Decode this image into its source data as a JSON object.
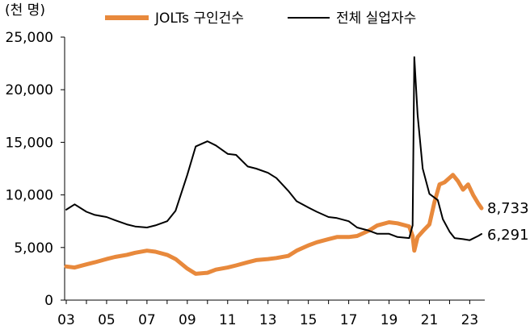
{
  "chart_data": {
    "type": "line",
    "unit_label": "(천 명)",
    "x_tick_labels": [
      "03",
      "05",
      "07",
      "09",
      "11",
      "13",
      "15",
      "17",
      "19",
      "21",
      "23"
    ],
    "x_tick_years": [
      2003,
      2005,
      2007,
      2009,
      2011,
      2013,
      2015,
      2017,
      2019,
      2021,
      2023
    ],
    "x_range": [
      "2003-01",
      "2023-08"
    ],
    "ylim": [
      0,
      25000
    ],
    "y_ticks": [
      0,
      5000,
      10000,
      15000,
      20000,
      25000
    ],
    "y_tick_labels": [
      "0",
      "5,000",
      "10,000",
      "15,000",
      "20,000",
      "25,000"
    ],
    "grid": false,
    "legend_position": "top",
    "series": [
      {
        "name": "JOLTs 구인건수",
        "color": "#E8893C",
        "points": [
          [
            "2003-01",
            3200
          ],
          [
            "2003-06",
            3100
          ],
          [
            "2004-01",
            3400
          ],
          [
            "2004-06",
            3600
          ],
          [
            "2005-01",
            3900
          ],
          [
            "2005-06",
            4100
          ],
          [
            "2006-01",
            4300
          ],
          [
            "2006-06",
            4500
          ],
          [
            "2007-01",
            4700
          ],
          [
            "2007-06",
            4600
          ],
          [
            "2008-01",
            4300
          ],
          [
            "2008-06",
            3900
          ],
          [
            "2009-01",
            3000
          ],
          [
            "2009-06",
            2500
          ],
          [
            "2010-01",
            2600
          ],
          [
            "2010-06",
            2900
          ],
          [
            "2011-01",
            3100
          ],
          [
            "2011-06",
            3300
          ],
          [
            "2012-01",
            3600
          ],
          [
            "2012-06",
            3800
          ],
          [
            "2013-01",
            3900
          ],
          [
            "2013-06",
            4000
          ],
          [
            "2014-01",
            4200
          ],
          [
            "2014-06",
            4700
          ],
          [
            "2015-01",
            5200
          ],
          [
            "2015-06",
            5500
          ],
          [
            "2016-01",
            5800
          ],
          [
            "2016-06",
            6000
          ],
          [
            "2017-01",
            6000
          ],
          [
            "2017-06",
            6100
          ],
          [
            "2018-01",
            6600
          ],
          [
            "2018-06",
            7100
          ],
          [
            "2019-01",
            7400
          ],
          [
            "2019-06",
            7300
          ],
          [
            "2020-01",
            7000
          ],
          [
            "2020-03",
            6100
          ],
          [
            "2020-04",
            4700
          ],
          [
            "2020-06",
            6000
          ],
          [
            "2020-10",
            6700
          ],
          [
            "2021-01",
            7200
          ],
          [
            "2021-04",
            9300
          ],
          [
            "2021-07",
            11000
          ],
          [
            "2021-10",
            11200
          ],
          [
            "2022-03",
            11900
          ],
          [
            "2022-06",
            11300
          ],
          [
            "2022-09",
            10500
          ],
          [
            "2022-12",
            11000
          ],
          [
            "2023-03",
            10000
          ],
          [
            "2023-06",
            9200
          ],
          [
            "2023-08",
            8733
          ]
        ]
      },
      {
        "name": "전체 실업자수",
        "color": "#000000",
        "points": [
          [
            "2003-01",
            8600
          ],
          [
            "2003-06",
            9100
          ],
          [
            "2004-01",
            8400
          ],
          [
            "2004-06",
            8100
          ],
          [
            "2005-01",
            7900
          ],
          [
            "2005-06",
            7600
          ],
          [
            "2006-01",
            7200
          ],
          [
            "2006-06",
            7000
          ],
          [
            "2007-01",
            6900
          ],
          [
            "2007-06",
            7100
          ],
          [
            "2008-01",
            7500
          ],
          [
            "2008-06",
            8500
          ],
          [
            "2009-01",
            11900
          ],
          [
            "2009-06",
            14600
          ],
          [
            "2010-01",
            15100
          ],
          [
            "2010-06",
            14700
          ],
          [
            "2011-01",
            13900
          ],
          [
            "2011-06",
            13800
          ],
          [
            "2012-01",
            12700
          ],
          [
            "2012-06",
            12500
          ],
          [
            "2013-01",
            12100
          ],
          [
            "2013-06",
            11600
          ],
          [
            "2014-01",
            10400
          ],
          [
            "2014-06",
            9400
          ],
          [
            "2015-01",
            8800
          ],
          [
            "2015-06",
            8400
          ],
          [
            "2016-01",
            7900
          ],
          [
            "2016-06",
            7800
          ],
          [
            "2017-01",
            7500
          ],
          [
            "2017-06",
            6900
          ],
          [
            "2018-01",
            6600
          ],
          [
            "2018-06",
            6300
          ],
          [
            "2019-01",
            6300
          ],
          [
            "2019-06",
            6000
          ],
          [
            "2020-01",
            5900
          ],
          [
            "2020-03",
            7100
          ],
          [
            "2020-04",
            23100
          ],
          [
            "2020-06",
            17600
          ],
          [
            "2020-09",
            12500
          ],
          [
            "2021-01",
            10100
          ],
          [
            "2021-06",
            9500
          ],
          [
            "2021-09",
            7700
          ],
          [
            "2022-01",
            6500
          ],
          [
            "2022-04",
            5900
          ],
          [
            "2022-09",
            5800
          ],
          [
            "2023-01",
            5700
          ],
          [
            "2023-06",
            6100
          ],
          [
            "2023-08",
            6291
          ]
        ]
      }
    ],
    "end_labels": [
      "8,733",
      "6,291"
    ]
  }
}
